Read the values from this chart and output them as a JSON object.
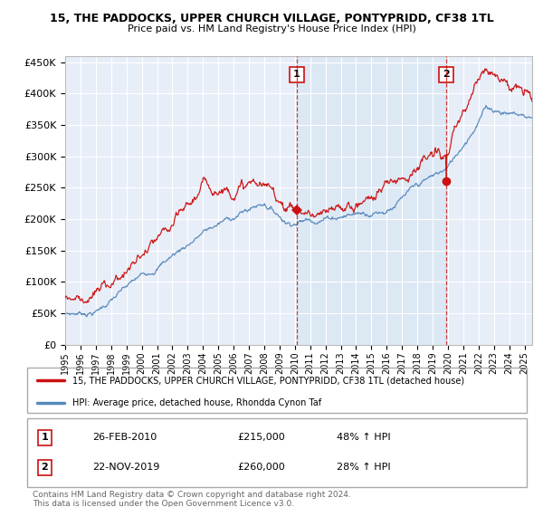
{
  "title_line1": "15, THE PADDOCKS, UPPER CHURCH VILLAGE, PONTYPRIDD, CF38 1TL",
  "title_line2": "Price paid vs. HM Land Registry's House Price Index (HPI)",
  "ylim": [
    0,
    460000
  ],
  "yticks": [
    0,
    50000,
    100000,
    150000,
    200000,
    250000,
    300000,
    350000,
    400000,
    450000
  ],
  "ytick_labels": [
    "£0",
    "£50K",
    "£100K",
    "£150K",
    "£200K",
    "£250K",
    "£300K",
    "£350K",
    "£400K",
    "£450K"
  ],
  "background_color": "#ffffff",
  "plot_bg_color": "#e8eef8",
  "grid_color": "#ffffff",
  "hpi_color": "#5588bb",
  "price_color": "#cc1111",
  "shade_color": "#dde8f5",
  "transaction1_year": 2010.12,
  "transaction1_price": 215000,
  "transaction1_date": "26-FEB-2010",
  "transaction1_hpi_text": "48% ↑ HPI",
  "transaction2_year": 2019.88,
  "transaction2_price": 260000,
  "transaction2_date": "22-NOV-2019",
  "transaction2_hpi_text": "28% ↑ HPI",
  "legend_label1": "15, THE PADDOCKS, UPPER CHURCH VILLAGE, PONTYPRIDD, CF38 1TL (detached house)",
  "legend_label2": "HPI: Average price, detached house, Rhondda Cynon Taf",
  "footnote": "Contains HM Land Registry data © Crown copyright and database right 2024.\nThis data is licensed under the Open Government Licence v3.0.",
  "xlim_start": 1995,
  "xlim_end": 2025.5
}
